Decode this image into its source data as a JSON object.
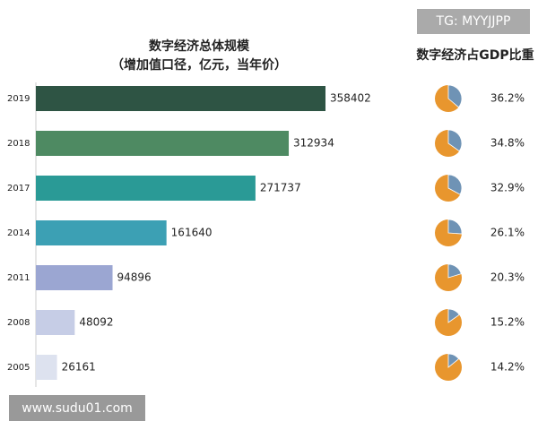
{
  "chart_data": [
    {
      "type": "hbar",
      "title": "数字经济总体规模",
      "subtitle": "（增加值口径，亿元，当年价）",
      "categories": [
        "2019",
        "2018",
        "2017",
        "2014",
        "2011",
        "2008",
        "2005"
      ],
      "values": [
        358402,
        312934,
        271737,
        161640,
        94896,
        48092,
        26161
      ],
      "colors": [
        "#2e5444",
        "#4e8a62",
        "#2a9a96",
        "#3ca0b4",
        "#9ba6d2",
        "#c6cde6",
        "#dde2ef"
      ]
    },
    {
      "type": "pie",
      "title": "数字经济占GDP比重",
      "values": [
        36.2,
        34.8,
        32.9,
        26.1,
        20.3,
        15.2,
        14.2
      ],
      "value_labels": [
        "36.2%",
        "34.8%",
        "32.9%",
        "26.1%",
        "20.3%",
        "15.2%",
        "14.2%"
      ],
      "color": "#6f93b5",
      "rest_color": "#e8962e"
    }
  ],
  "watermarks": [
    "TG: MYYJJPP",
    "www.sudu01.com"
  ]
}
